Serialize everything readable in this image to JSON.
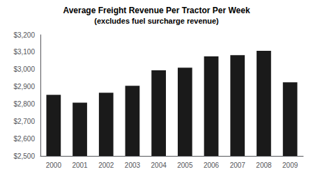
{
  "chart_data": {
    "type": "bar",
    "title": "Average Freight Revenue Per Tractor Per Week",
    "subtitle": "(excludes fuel surcharge revenue)",
    "categories": [
      "2000",
      "2001",
      "2002",
      "2003",
      "2004",
      "2005",
      "2006",
      "2007",
      "2008",
      "2009"
    ],
    "values": [
      2853,
      2808,
      2865,
      2905,
      2995,
      3010,
      3075,
      3082,
      3107,
      2925
    ],
    "color": "#1a1a1a",
    "ylim": [
      2500,
      3200
    ],
    "yticks": [
      {
        "value": 2500,
        "label": "$2,500"
      },
      {
        "value": 2600,
        "label": "$2,600"
      },
      {
        "value": 2700,
        "label": "$2,700"
      },
      {
        "value": 2800,
        "label": "$2,800"
      },
      {
        "value": 2900,
        "label": "$2,900"
      },
      {
        "value": 3000,
        "label": "$3,000"
      },
      {
        "value": 3100,
        "label": "$3,100"
      },
      {
        "value": 3200,
        "label": "$3,200"
      }
    ],
    "grid": false
  }
}
